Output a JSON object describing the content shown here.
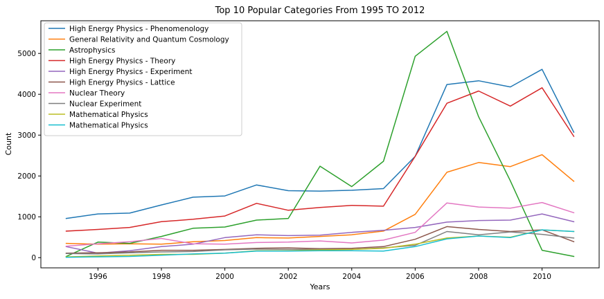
{
  "chart_data": {
    "type": "line",
    "title": "Top 10 Popular Categories From 1995 TO 2012",
    "xlabel": "Years",
    "ylabel": "Count",
    "xlim": [
      1994.2,
      2011.8
    ],
    "ylim": [
      -250,
      5800
    ],
    "x_ticks": [
      1996,
      1998,
      2000,
      2002,
      2004,
      2006,
      2008,
      2010
    ],
    "y_ticks": [
      0,
      1000,
      2000,
      3000,
      4000,
      5000
    ],
    "grid": false,
    "legend_position": "upper-left",
    "x": [
      1995,
      1996,
      1997,
      1998,
      1999,
      2000,
      2001,
      2002,
      2003,
      2004,
      2005,
      2006,
      2007,
      2008,
      2009,
      2010,
      2011
    ],
    "series": [
      {
        "name": "High Energy Physics - Phenomenology",
        "color": "#1f77b4",
        "values": [
          960,
          1070,
          1090,
          1290,
          1480,
          1510,
          1780,
          1640,
          1630,
          1650,
          1690,
          2480,
          4240,
          4330,
          4180,
          4610,
          3070
        ]
      },
      {
        "name": "General Relativity and Quantum Cosmology",
        "color": "#ff7f0e",
        "values": [
          350,
          330,
          340,
          330,
          390,
          420,
          490,
          480,
          520,
          560,
          650,
          1060,
          2090,
          2330,
          2230,
          2520,
          1870
        ]
      },
      {
        "name": "Astrophysics",
        "color": "#2ca02c",
        "values": [
          30,
          380,
          350,
          520,
          720,
          750,
          920,
          960,
          2240,
          1740,
          2360,
          4930,
          5540,
          3450,
          1880,
          180,
          30
        ]
      },
      {
        "name": "High Energy Physics - Theory",
        "color": "#d62728",
        "values": [
          650,
          690,
          740,
          880,
          940,
          1020,
          1330,
          1160,
          1230,
          1280,
          1260,
          2480,
          3780,
          4080,
          3710,
          4160,
          2970
        ]
      },
      {
        "name": "High Energy Physics - Experiment",
        "color": "#9467bd",
        "values": [
          270,
          110,
          170,
          270,
          330,
          490,
          560,
          540,
          550,
          620,
          670,
          740,
          870,
          910,
          920,
          1070,
          880
        ]
      },
      {
        "name": "High Energy Physics - Lattice",
        "color": "#8c564b",
        "values": [
          110,
          120,
          140,
          180,
          180,
          200,
          230,
          240,
          220,
          230,
          270,
          450,
          760,
          690,
          640,
          680,
          390
        ]
      },
      {
        "name": "Nuclear Theory",
        "color": "#e377c2",
        "values": [
          280,
          340,
          390,
          470,
          340,
          330,
          370,
          380,
          410,
          360,
          430,
          620,
          1340,
          1240,
          1210,
          1350,
          1100
        ]
      },
      {
        "name": "Nuclear Experiment",
        "color": "#7f7f7f",
        "values": [
          100,
          90,
          120,
          140,
          150,
          190,
          210,
          200,
          200,
          200,
          240,
          300,
          640,
          560,
          630,
          570,
          480
        ]
      },
      {
        "name": "Mathematical Physics",
        "color": "#bcbd22",
        "values": [
          20,
          40,
          60,
          80,
          80,
          110,
          170,
          170,
          190,
          200,
          230,
          330,
          480,
          530,
          500,
          680,
          640
        ]
      },
      {
        "name": "Mathematical Physics",
        "color": "#17becf",
        "values": [
          10,
          20,
          30,
          60,
          90,
          110,
          160,
          160,
          170,
          170,
          160,
          270,
          460,
          530,
          490,
          680,
          640
        ]
      }
    ]
  }
}
